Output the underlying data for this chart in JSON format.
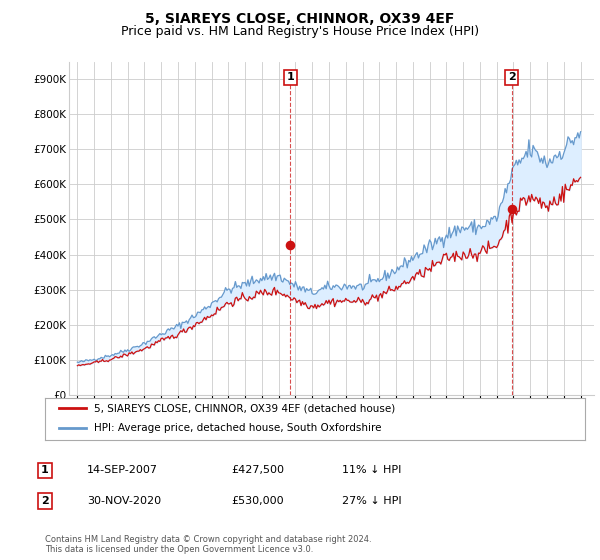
{
  "title": "5, SIAREYS CLOSE, CHINNOR, OX39 4EF",
  "subtitle": "Price paid vs. HM Land Registry's House Price Index (HPI)",
  "ylim": [
    0,
    950000
  ],
  "yticks": [
    0,
    100000,
    200000,
    300000,
    400000,
    500000,
    600000,
    700000,
    800000,
    900000
  ],
  "ytick_labels": [
    "£0",
    "£100K",
    "£200K",
    "£300K",
    "£400K",
    "£500K",
    "£600K",
    "£700K",
    "£800K",
    "£900K"
  ],
  "background_color": "#ffffff",
  "grid_color": "#cccccc",
  "fill_color": "#ddeeff",
  "hpi_color": "#6699cc",
  "price_color": "#cc1111",
  "marker1_x": 2007.7,
  "marker1_y": 427500,
  "marker2_x": 2020.9,
  "marker2_y": 530000,
  "legend_line1": "5, SIAREYS CLOSE, CHINNOR, OX39 4EF (detached house)",
  "legend_line2": "HPI: Average price, detached house, South Oxfordshire",
  "table_rows": [
    [
      "1",
      "14-SEP-2007",
      "£427,500",
      "11% ↓ HPI"
    ],
    [
      "2",
      "30-NOV-2020",
      "£530,000",
      "27% ↓ HPI"
    ]
  ],
  "footer": "Contains HM Land Registry data © Crown copyright and database right 2024.\nThis data is licensed under the Open Government Licence v3.0.",
  "title_fontsize": 10,
  "subtitle_fontsize": 9,
  "tick_fontsize": 7.5,
  "hpi_yearly": [
    1995,
    1996,
    1997,
    1998,
    1999,
    2000,
    2001,
    2002,
    2003,
    2004,
    2005,
    2006,
    2007,
    2008,
    2009,
    2010,
    2011,
    2012,
    2013,
    2014,
    2015,
    2016,
    2017,
    2018,
    2019,
    2020,
    2021,
    2022,
    2023,
    2024,
    2025
  ],
  "hpi_vals": [
    92000,
    101000,
    113000,
    128000,
    147000,
    173000,
    196000,
    225000,
    260000,
    300000,
    315000,
    333000,
    338000,
    310000,
    290000,
    307000,
    310000,
    308000,
    328000,
    356000,
    390000,
    422000,
    458000,
    475000,
    478000,
    504000,
    640000,
    700000,
    660000,
    700000,
    750000
  ],
  "price_yearly": [
    1995,
    1996,
    1997,
    1998,
    1999,
    2000,
    2001,
    2002,
    2003,
    2004,
    2005,
    2006,
    2007,
    2008,
    2009,
    2010,
    2011,
    2012,
    2013,
    2014,
    2015,
    2016,
    2017,
    2018,
    2019,
    2020,
    2021,
    2022,
    2023,
    2024,
    2025
  ],
  "price_vals": [
    82000,
    91000,
    101000,
    115000,
    131000,
    154000,
    172000,
    200000,
    228000,
    262000,
    275000,
    290000,
    295000,
    270000,
    252000,
    265000,
    268000,
    265000,
    282000,
    304000,
    332000,
    358000,
    390000,
    400000,
    405000,
    425000,
    522000,
    565000,
    535000,
    575000,
    620000
  ],
  "xlim_left": 1994.5,
  "xlim_right": 2025.8
}
